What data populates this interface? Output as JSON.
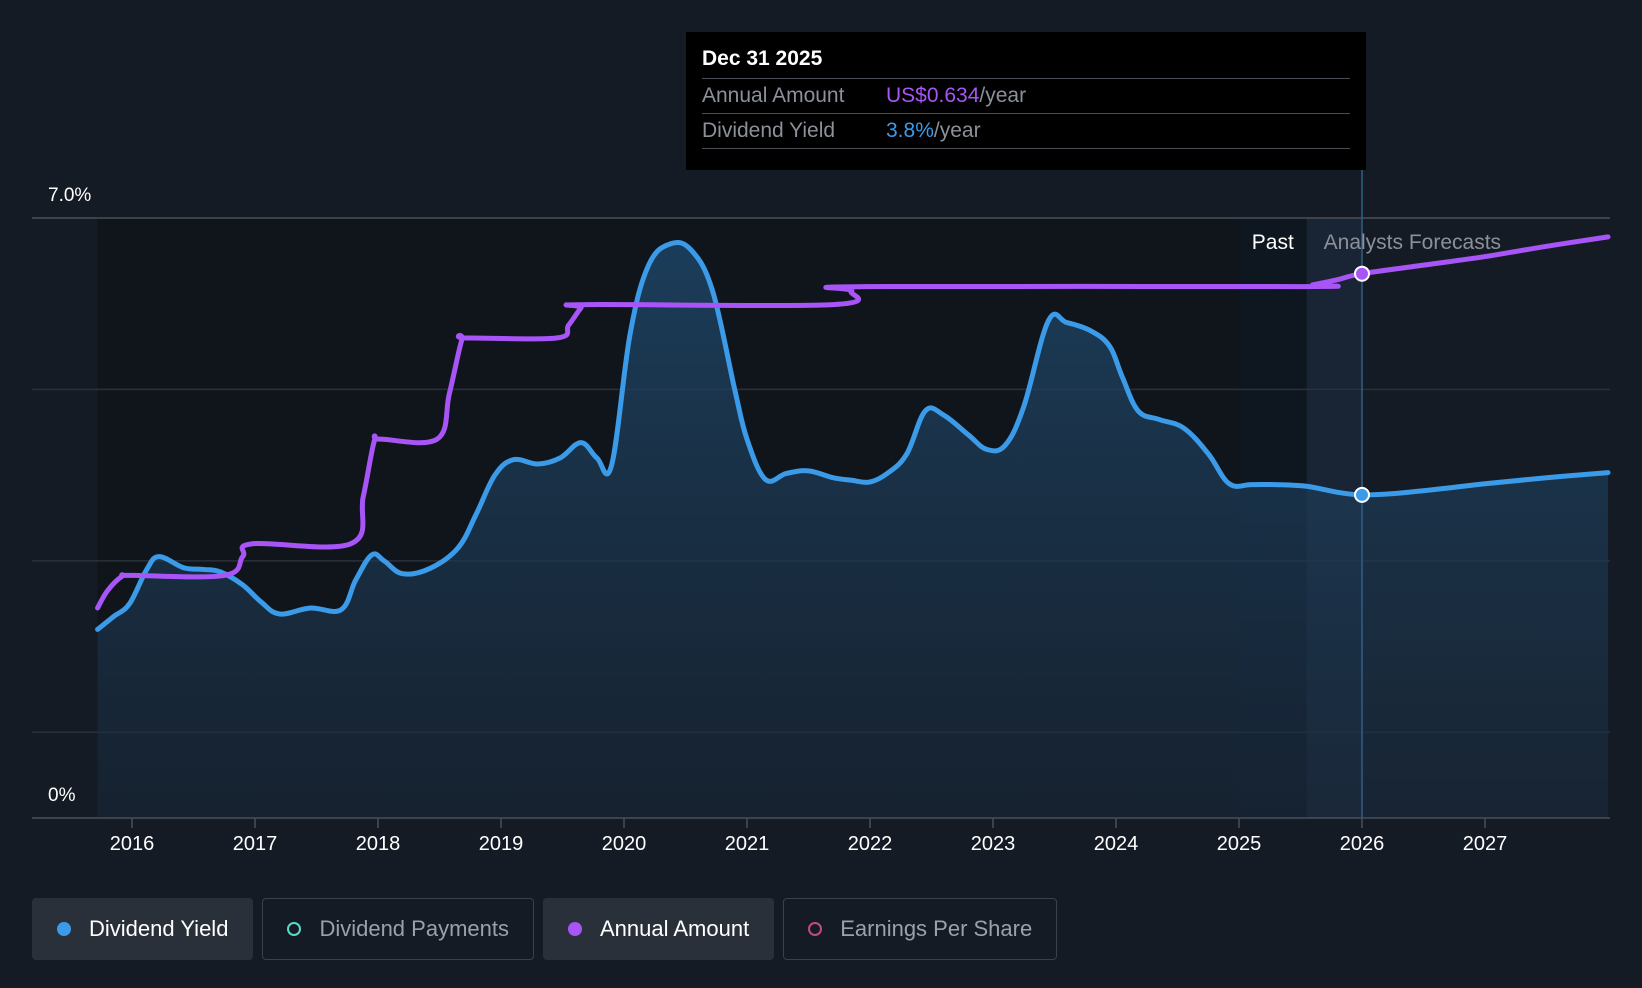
{
  "tooltip": {
    "date": "Dec 31 2025",
    "annual_label": "Annual Amount",
    "annual_value": "US$0.634",
    "annual_unit": "/year",
    "yield_label": "Dividend Yield",
    "yield_value": "3.8%",
    "yield_unit": "/year"
  },
  "legend": [
    {
      "label": "Dividend Yield",
      "active": true,
      "color": "#3b9be8",
      "filled": true
    },
    {
      "label": "Dividend Payments",
      "active": false,
      "color": "#5ad8c8",
      "filled": false
    },
    {
      "label": "Annual Amount",
      "active": true,
      "color": "#a855f7",
      "filled": true
    },
    {
      "label": "Earnings Per Share",
      "active": false,
      "color": "#c44a7a",
      "filled": false
    }
  ],
  "colors": {
    "yield": "#3b9be8",
    "annual": "#a855f7",
    "grid": "#2a313b",
    "axis": "#4a505a",
    "text": "#ffffff",
    "muted": "#9ba1aa"
  },
  "chart_data": {
    "type": "line",
    "title": "",
    "xlabel": "",
    "ylabel": "",
    "ylim": [
      0,
      7
    ],
    "xlim": [
      2015.72,
      2028.0
    ],
    "y_tick_labels": [
      "7.0%",
      "0%"
    ],
    "x_ticks": [
      2016,
      2017,
      2018,
      2019,
      2020,
      2021,
      2022,
      2023,
      2024,
      2025,
      2026,
      2027
    ],
    "regions": {
      "past_label": "Past",
      "forecast_label": "Analysts Forecasts",
      "past_band_start": 2025.0,
      "past_band_end": 2025.55,
      "forecast_start": 2025.55,
      "cursor_x": 2026.0
    },
    "series": [
      {
        "name": "Dividend Yield",
        "unit": "%",
        "marker_point": [
          2026.0,
          3.77
        ],
        "points": [
          [
            2015.72,
            2.2
          ],
          [
            2015.85,
            2.35
          ],
          [
            2015.98,
            2.5
          ],
          [
            2016.12,
            2.9
          ],
          [
            2016.22,
            3.05
          ],
          [
            2016.42,
            2.92
          ],
          [
            2016.58,
            2.9
          ],
          [
            2016.72,
            2.87
          ],
          [
            2016.9,
            2.72
          ],
          [
            2017.05,
            2.52
          ],
          [
            2017.2,
            2.38
          ],
          [
            2017.45,
            2.45
          ],
          [
            2017.7,
            2.43
          ],
          [
            2017.82,
            2.78
          ],
          [
            2017.95,
            3.07
          ],
          [
            2018.05,
            3.0
          ],
          [
            2018.2,
            2.85
          ],
          [
            2018.42,
            2.91
          ],
          [
            2018.65,
            3.15
          ],
          [
            2018.8,
            3.55
          ],
          [
            2018.95,
            4.0
          ],
          [
            2019.1,
            4.18
          ],
          [
            2019.3,
            4.13
          ],
          [
            2019.48,
            4.2
          ],
          [
            2019.65,
            4.38
          ],
          [
            2019.78,
            4.2
          ],
          [
            2019.9,
            4.12
          ],
          [
            2020.05,
            5.65
          ],
          [
            2020.2,
            6.45
          ],
          [
            2020.38,
            6.7
          ],
          [
            2020.55,
            6.62
          ],
          [
            2020.72,
            6.15
          ],
          [
            2020.9,
            5.0
          ],
          [
            2021.0,
            4.42
          ],
          [
            2021.15,
            3.95
          ],
          [
            2021.32,
            4.02
          ],
          [
            2021.5,
            4.05
          ],
          [
            2021.7,
            3.97
          ],
          [
            2021.85,
            3.94
          ],
          [
            2022.0,
            3.92
          ],
          [
            2022.15,
            4.03
          ],
          [
            2022.3,
            4.25
          ],
          [
            2022.45,
            4.75
          ],
          [
            2022.6,
            4.7
          ],
          [
            2022.8,
            4.47
          ],
          [
            2022.95,
            4.3
          ],
          [
            2023.1,
            4.35
          ],
          [
            2023.25,
            4.8
          ],
          [
            2023.45,
            5.8
          ],
          [
            2023.6,
            5.78
          ],
          [
            2023.8,
            5.68
          ],
          [
            2023.95,
            5.5
          ],
          [
            2024.05,
            5.15
          ],
          [
            2024.18,
            4.75
          ],
          [
            2024.35,
            4.65
          ],
          [
            2024.55,
            4.55
          ],
          [
            2024.75,
            4.25
          ],
          [
            2024.92,
            3.9
          ],
          [
            2025.1,
            3.89
          ],
          [
            2025.3,
            3.89
          ],
          [
            2025.55,
            3.87
          ],
          [
            2025.8,
            3.8
          ],
          [
            2026.0,
            3.77
          ],
          [
            2026.3,
            3.79
          ],
          [
            2026.7,
            3.85
          ],
          [
            2027.0,
            3.9
          ],
          [
            2027.5,
            3.97
          ],
          [
            2028.0,
            4.03
          ]
        ]
      },
      {
        "name": "Annual Amount",
        "unit": "US$/year",
        "marker_point": [
          2026.0,
          6.35
        ],
        "points": [
          [
            2015.72,
            2.45
          ],
          [
            2015.8,
            2.65
          ],
          [
            2015.92,
            2.82
          ],
          [
            2016.0,
            2.83
          ],
          [
            2016.75,
            2.83
          ],
          [
            2016.9,
            3.05
          ],
          [
            2016.98,
            3.2
          ],
          [
            2017.78,
            3.2
          ],
          [
            2017.88,
            3.75
          ],
          [
            2017.97,
            4.4
          ],
          [
            2018.02,
            4.42
          ],
          [
            2018.48,
            4.42
          ],
          [
            2018.58,
            4.95
          ],
          [
            2018.68,
            5.57
          ],
          [
            2018.72,
            5.6
          ],
          [
            2019.45,
            5.6
          ],
          [
            2019.55,
            5.75
          ],
          [
            2019.65,
            5.95
          ],
          [
            2019.7,
            5.99
          ],
          [
            2021.7,
            5.99
          ],
          [
            2021.85,
            6.15
          ],
          [
            2021.95,
            6.2
          ],
          [
            2025.5,
            6.2
          ],
          [
            2025.6,
            6.22
          ],
          [
            2025.8,
            6.28
          ],
          [
            2026.0,
            6.35
          ],
          [
            2026.5,
            6.45
          ],
          [
            2027.0,
            6.55
          ],
          [
            2027.5,
            6.67
          ],
          [
            2028.0,
            6.78
          ]
        ]
      }
    ]
  }
}
